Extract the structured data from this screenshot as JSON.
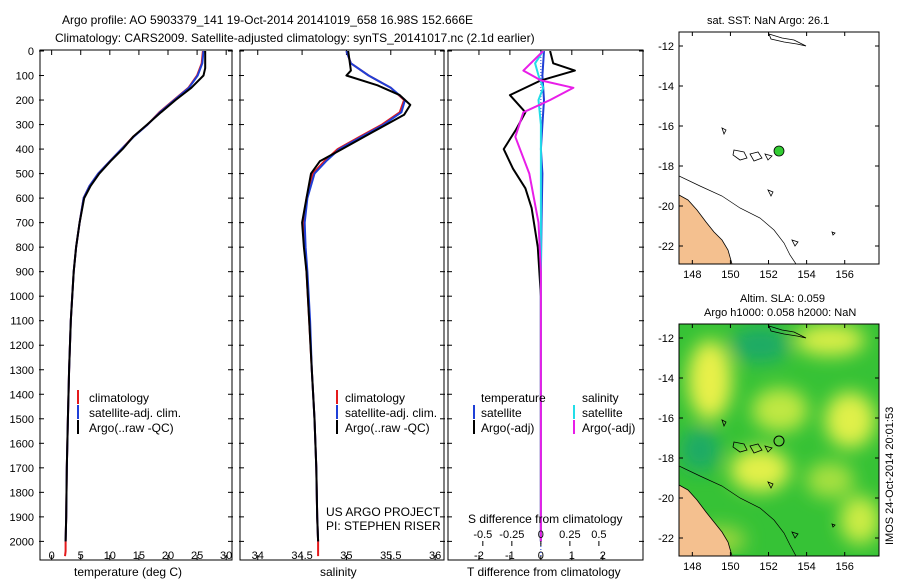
{
  "title_line1": "Argo profile: AO 5903379_141 19-Oct-2014 20141019_658 16.98S 152.666E",
  "title_line2": "Climatology: CARS2009. Satellite-adjusted climatology: synTS_20141017.nc (2.1d earlier)",
  "depth_ticks": [
    0,
    100,
    200,
    300,
    400,
    500,
    600,
    700,
    800,
    900,
    1000,
    1100,
    1200,
    1300,
    1400,
    1500,
    1600,
    1700,
    1800,
    1900,
    2000
  ],
  "depth_range": [
    0,
    2080
  ],
  "colors": {
    "climatology": "#e41a1c",
    "satellite": "#1f3fd6",
    "argo": "#000000",
    "sal_sat": "#22dde8",
    "sal_argo": "#e81ee8",
    "land": "#f4c08f"
  },
  "temperature_panel": {
    "xlabel": "temperature (deg C)",
    "xlim": [
      -2,
      31
    ],
    "xticks": [
      "0",
      "5",
      "10",
      "15",
      "20",
      "25",
      "30"
    ],
    "xtick_values": [
      0,
      5,
      10,
      15,
      20,
      25,
      30
    ],
    "legend": [
      "climatology",
      "satellite-adj. clim.",
      "Argo(..raw -QC)"
    ]
  },
  "salinity_panel": {
    "xlabel": "salinity",
    "xlim": [
      33.8,
      36.1
    ],
    "xticks": [
      "34",
      "34.5",
      "35",
      "35.5",
      "36"
    ],
    "xtick_values": [
      34,
      34.5,
      35,
      35.5,
      36
    ],
    "legend": [
      "climatology",
      "satellite-adj. clim.",
      "Argo(..raw -QC)"
    ],
    "note_line1": "US ARGO PROJECT",
    "note_line2": "PI: STEPHEN RISER"
  },
  "diff_panel": {
    "xlabel": "T difference from climatology",
    "xlim": [
      -3,
      3.3
    ],
    "xticks": [
      "-2",
      "-1",
      "0",
      "1",
      "2"
    ],
    "xtick_values": [
      -2,
      -1,
      0,
      1,
      2
    ],
    "s_label": "S difference from climatology",
    "s_ticks": [
      "-0.5",
      "-0.25",
      "0",
      "0.25",
      "0.5"
    ],
    "s_tick_values": [
      -0.5,
      -0.25,
      0,
      0.25,
      0.5
    ],
    "legend_temp_title": "temperature",
    "legend_sal_title": "salinity",
    "legend_temp": [
      "satellite",
      "Argo(-adj)"
    ],
    "legend_sal": [
      "satellite",
      "Argo(-adj)"
    ]
  },
  "map_sst": {
    "title": "sat. SST: NaN Argo: 26.1",
    "xticks": [
      "148",
      "150",
      "152",
      "154",
      "156"
    ],
    "yticks": [
      "-12",
      "-14",
      "-16",
      "-18",
      "-20",
      "-22"
    ]
  },
  "map_sla": {
    "title_line1": "Altim. SLA: 0.059",
    "title_line2": "Argo h1000: 0.058 h2000: NaN",
    "xticks": [
      "148",
      "150",
      "152",
      "154",
      "156"
    ],
    "yticks": [
      "-12",
      "-14",
      "-16",
      "-18",
      "-20",
      "-22"
    ]
  },
  "timestamp": "IMOS 24-Oct-2014 20:01:53",
  "chart_data": {
    "type": "line",
    "panels": [
      {
        "name": "temperature",
        "xlabel": "temperature (deg C)",
        "ylabel": "depth",
        "series": [
          {
            "name": "climatology",
            "x": [
              26.0,
              25.8,
              25.0,
              23.5,
              21.0,
              18.5,
              16.5,
              14.0,
              12.0,
              10.0,
              8.0,
              6.5,
              5.5,
              4.8,
              4.2,
              3.8,
              3.3,
              3.0,
              2.8,
              2.6,
              2.5,
              2.4,
              2.4,
              2.3
            ],
            "depth": [
              0,
              50,
              100,
              150,
              200,
              250,
              300,
              350,
              400,
              450,
              500,
              550,
              600,
              700,
              800,
              900,
              1100,
              1300,
              1500,
              1700,
              1900,
              2000,
              2040,
              2060
            ]
          },
          {
            "name": "satellite-adj. clim.",
            "x": [
              26.1,
              25.9,
              25.1,
              23.6,
              21.1,
              18.6,
              16.5,
              14.1,
              12.0,
              10.0,
              8.0,
              6.5,
              5.5,
              4.8,
              4.2,
              3.8,
              3.3,
              3.0,
              2.8,
              2.6,
              2.5,
              2.4
            ],
            "depth": [
              0,
              50,
              100,
              150,
              200,
              250,
              300,
              350,
              400,
              450,
              500,
              550,
              600,
              700,
              800,
              900,
              1100,
              1300,
              1500,
              1700,
              1900,
              2000
            ]
          },
          {
            "name": "Argo(..raw -QC)",
            "x": [
              26.4,
              26.4,
              26.1,
              24.0,
              21.3,
              18.8,
              16.4,
              14.0,
              12.2,
              10.1,
              8.2,
              6.7,
              5.6,
              4.8,
              4.2,
              3.8,
              3.3,
              3.0,
              2.8,
              2.6,
              2.5,
              2.4
            ],
            "depth": [
              0,
              70,
              100,
              150,
              200,
              250,
              300,
              350,
              400,
              450,
              500,
              550,
              600,
              700,
              800,
              900,
              1100,
              1300,
              1500,
              1700,
              1900,
              2000
            ]
          }
        ]
      },
      {
        "name": "salinity",
        "xlabel": "salinity",
        "ylabel": "depth",
        "series": [
          {
            "name": "climatology",
            "x": [
              35.0,
              35.05,
              35.25,
              35.5,
              35.65,
              35.6,
              35.4,
              35.15,
              34.9,
              34.75,
              34.62,
              34.55,
              34.52,
              34.53,
              34.55,
              34.58,
              34.61,
              34.64,
              34.66,
              34.67,
              34.68,
              34.68
            ],
            "depth": [
              0,
              50,
              100,
              150,
              200,
              250,
              300,
              350,
              400,
              450,
              500,
              600,
              700,
              800,
              900,
              1100,
              1300,
              1500,
              1700,
              1900,
              2000,
              2060
            ]
          },
          {
            "name": "satellite-adj. clim.",
            "x": [
              35.0,
              35.05,
              35.25,
              35.5,
              35.66,
              35.62,
              35.42,
              35.17,
              34.92,
              34.77,
              34.64,
              34.56,
              34.53,
              34.54,
              34.56,
              34.59,
              34.61,
              34.64,
              34.66,
              34.67,
              34.68
            ],
            "depth": [
              0,
              50,
              100,
              150,
              200,
              250,
              300,
              350,
              400,
              450,
              500,
              600,
              700,
              800,
              900,
              1100,
              1300,
              1500,
              1700,
              1900,
              2000
            ]
          },
          {
            "name": "Argo(..raw -QC)",
            "x": [
              35.02,
              35.05,
              35.0,
              35.35,
              35.6,
              35.72,
              35.65,
              35.3,
              34.95,
              34.7,
              34.6,
              34.55,
              34.5,
              34.52,
              34.55,
              34.58,
              34.61,
              34.64,
              34.66,
              34.67,
              34.68
            ],
            "depth": [
              0,
              80,
              100,
              140,
              180,
              220,
              260,
              330,
              400,
              450,
              500,
              600,
              700,
              800,
              900,
              1100,
              1300,
              1500,
              1700,
              1900,
              2000
            ]
          }
        ]
      },
      {
        "name": "differences",
        "xlabel": "T difference from climatology",
        "x2label": "S difference from climatology",
        "series": [
          {
            "name": "temperature satellite",
            "x": [
              0.1,
              0.05,
              0.1,
              0.05,
              0.0,
              0.05,
              0.02,
              0.0,
              0.0,
              0.0,
              0.0,
              0.0
            ],
            "depth": [
              0,
              100,
              200,
              300,
              400,
              500,
              700,
              900,
              1200,
              1500,
              1800,
              2000
            ]
          },
          {
            "name": "temperature Argo(-adj)",
            "x": [
              0.3,
              0.4,
              1.1,
              0.0,
              -1.0,
              -0.5,
              -0.8,
              -1.2,
              -0.9,
              -0.5,
              -0.3,
              -0.2,
              -0.1,
              0.0,
              0.0,
              0.0
            ],
            "depth": [
              0,
              50,
              80,
              120,
              180,
              250,
              320,
              400,
              480,
              560,
              640,
              720,
              800,
              1000,
              1500,
              2000
            ]
          },
          {
            "name": "salinity satellite",
            "s": [
              0.02,
              -0.05,
              -0.02,
              0.02,
              -0.02,
              0.0,
              0.0,
              0.0,
              0.0,
              0.0,
              0.0
            ],
            "depth": [
              0,
              50,
              100,
              150,
              200,
              300,
              500,
              800,
              1200,
              1600,
              2000
            ]
          },
          {
            "name": "salinity Argo(-adj)",
            "s": [
              0.02,
              -0.15,
              0.0,
              0.28,
              0.08,
              -0.15,
              -0.22,
              -0.1,
              -0.02,
              0.0,
              0.0,
              0.0
            ],
            "depth": [
              0,
              80,
              120,
              150,
              200,
              250,
              350,
              500,
              700,
              900,
              1400,
              2000
            ]
          }
        ]
      }
    ]
  }
}
